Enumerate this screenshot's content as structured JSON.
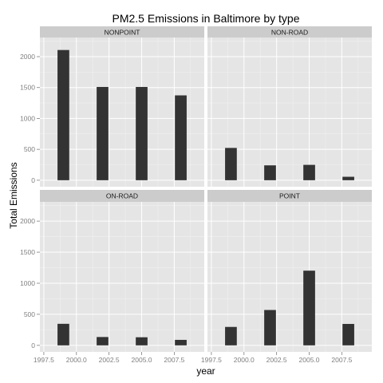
{
  "chart_data": {
    "type": "bar",
    "title": "PM2.5 Emissions in Baltimore by type",
    "xlabel": "year",
    "ylabel": "Total Emissions",
    "x_ticks": [
      "1997.5",
      "2000.0",
      "2002.5",
      "2005.0",
      "2007.5"
    ],
    "y_ticks": [
      "0",
      "500",
      "1000",
      "1500",
      "2000"
    ],
    "xlim": [
      1997.2,
      2009.8
    ],
    "ylim": [
      -105,
      2310
    ],
    "bar_width_years": 0.9,
    "grid": true,
    "legend": "none",
    "colors": {
      "bar": "#333333",
      "panel_bg": "#e5e5e5",
      "strip_bg": "#cccccc",
      "grid_major": "#ffffff",
      "grid_minor": "#f2f2f2"
    },
    "panels": [
      {
        "name": "NONPOINT",
        "x": [
          1999,
          2002,
          2005,
          2008
        ],
        "values": [
          2107.6,
          1509.5,
          1509.5,
          1373.2
        ]
      },
      {
        "name": "NON-ROAD",
        "x": [
          1999,
          2002,
          2005,
          2008
        ],
        "values": [
          522.9,
          240.8,
          248.9,
          55.8
        ]
      },
      {
        "name": "ON-ROAD",
        "x": [
          1999,
          2002,
          2005,
          2008
        ],
        "values": [
          346.8,
          134.3,
          130.4,
          88.3
        ]
      },
      {
        "name": "POINT",
        "x": [
          1999,
          2002,
          2005,
          2008
        ],
        "values": [
          296.8,
          569.3,
          1202.5,
          344.98
        ]
      }
    ]
  }
}
